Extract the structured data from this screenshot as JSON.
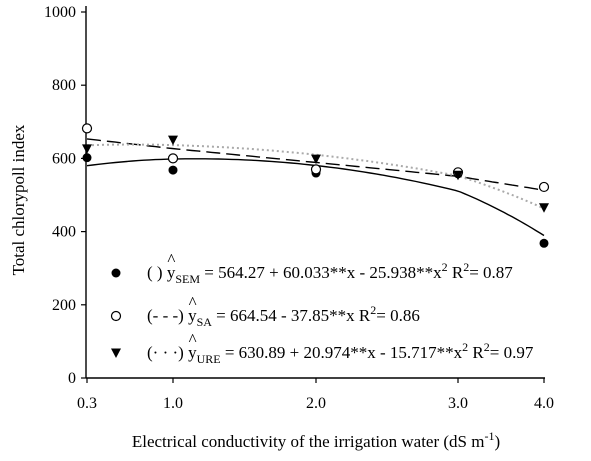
{
  "chart_data": {
    "type": "scatter",
    "title": "",
    "xlabel": "Electrical conductivity of the irrigation water (dS m",
    "xlabel_sup": "-1",
    "xlabel_end": ")",
    "ylabel": "Total chlorypoll index",
    "ylim": [
      0,
      1000
    ],
    "yticks": [
      0,
      200,
      400,
      600,
      800,
      1000
    ],
    "x": [
      0.3,
      1.0,
      2.0,
      3.0,
      4.0
    ],
    "xtick_labels": [
      "0.3",
      "1.0",
      "2.0",
      "3.0",
      "4.0"
    ],
    "grid": false,
    "legend_placement": "bottom-right",
    "series": [
      {
        "key": "SEM",
        "marker": "filled-circle",
        "line": "solid",
        "color": "#000000",
        "values": [
          602,
          568,
          560,
          558,
          368
        ],
        "legend_prefix": "(        )",
        "subscript": "SEM",
        "equation": " = 564.27 + 60.033**x - 25.938**x",
        "equation_sup": "2",
        "r2_label": "R",
        "r2_sup": "2",
        "r2_value": "= 0.87",
        "fit": {
          "a": 564.27,
          "b": 60.033,
          "c": -25.938
        }
      },
      {
        "key": "SA",
        "marker": "open-circle",
        "line": "dashed",
        "color": "#000000",
        "values": [
          682,
          600,
          570,
          562,
          522
        ],
        "legend_prefix": "(- - -)",
        "subscript": "SA",
        "equation": " = 664.54 - 37.85**x",
        "equation_sup": "",
        "r2_label": "R",
        "r2_sup": "2",
        "r2_value": "= 0.86",
        "fit": {
          "a": 664.54,
          "b": -37.85,
          "c": 0
        }
      },
      {
        "key": "URE",
        "marker": "filled-triangle-down",
        "line": "dotted",
        "color": "#aaaaaa",
        "values": [
          626,
          650,
          598,
          554,
          465
        ],
        "legend_prefix": "(· · ·)",
        "subscript": "URE",
        "equation": " = 630.89 + 20.974**x - 15.717**x",
        "equation_sup": "2",
        "r2_label": "R",
        "r2_sup": "2",
        "r2_value": "= 0.97",
        "fit": {
          "a": 630.89,
          "b": 20.974,
          "c": -15.717
        }
      }
    ]
  }
}
